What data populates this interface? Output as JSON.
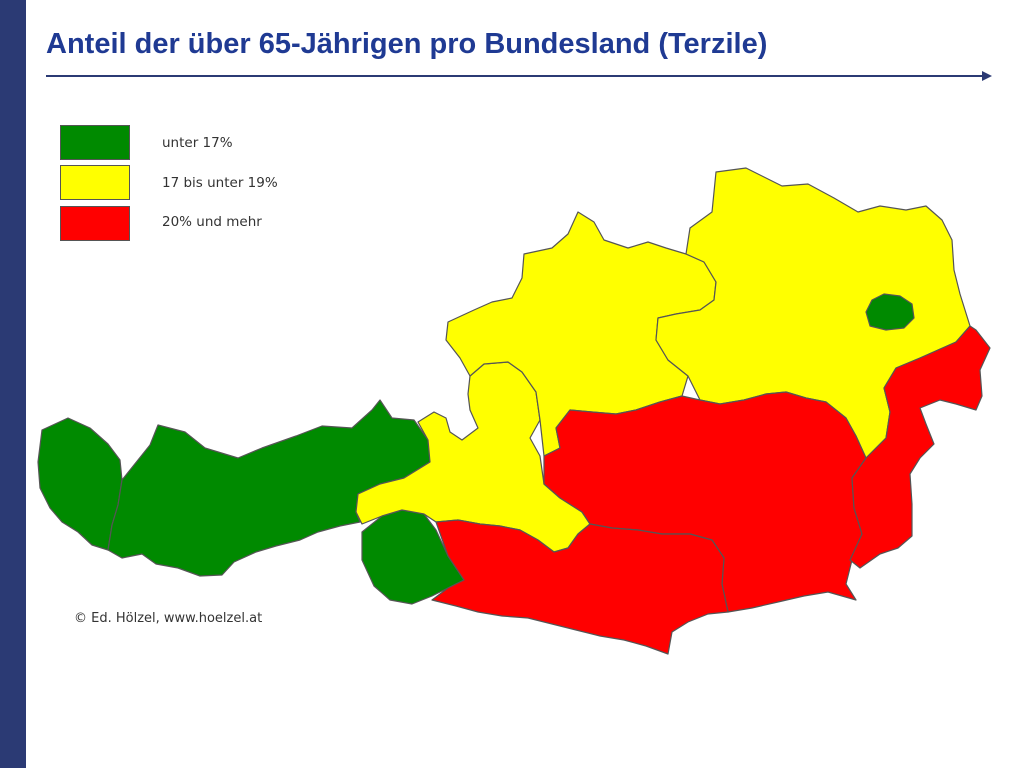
{
  "slide": {
    "title": "Anteil der über 65-Jährigen pro Bundesland (Terzile)",
    "copyright": "© Ed. Hölzel, www.hoelzel.at",
    "accent_color": "#2b3a74",
    "title_color": "#1f3a93"
  },
  "legend": {
    "items": [
      {
        "label": "unter 17%",
        "color": "#008a00"
      },
      {
        "label": "17 bis unter 19%",
        "color": "#ffff00"
      },
      {
        "label": "20% und mehr",
        "color": "#ff0000"
      }
    ]
  },
  "map": {
    "regions": [
      {
        "id": "vorarlberg",
        "class": 0
      },
      {
        "id": "tirol",
        "class": 0
      },
      {
        "id": "osttirol",
        "class": 0
      },
      {
        "id": "salzburg",
        "class": 1
      },
      {
        "id": "oberoesterreich",
        "class": 1
      },
      {
        "id": "niederoesterreich",
        "class": 1
      },
      {
        "id": "wien",
        "class": 0
      },
      {
        "id": "steiermark",
        "class": 2
      },
      {
        "id": "kaernten",
        "class": 2
      },
      {
        "id": "burgenland",
        "class": 2
      }
    ]
  }
}
